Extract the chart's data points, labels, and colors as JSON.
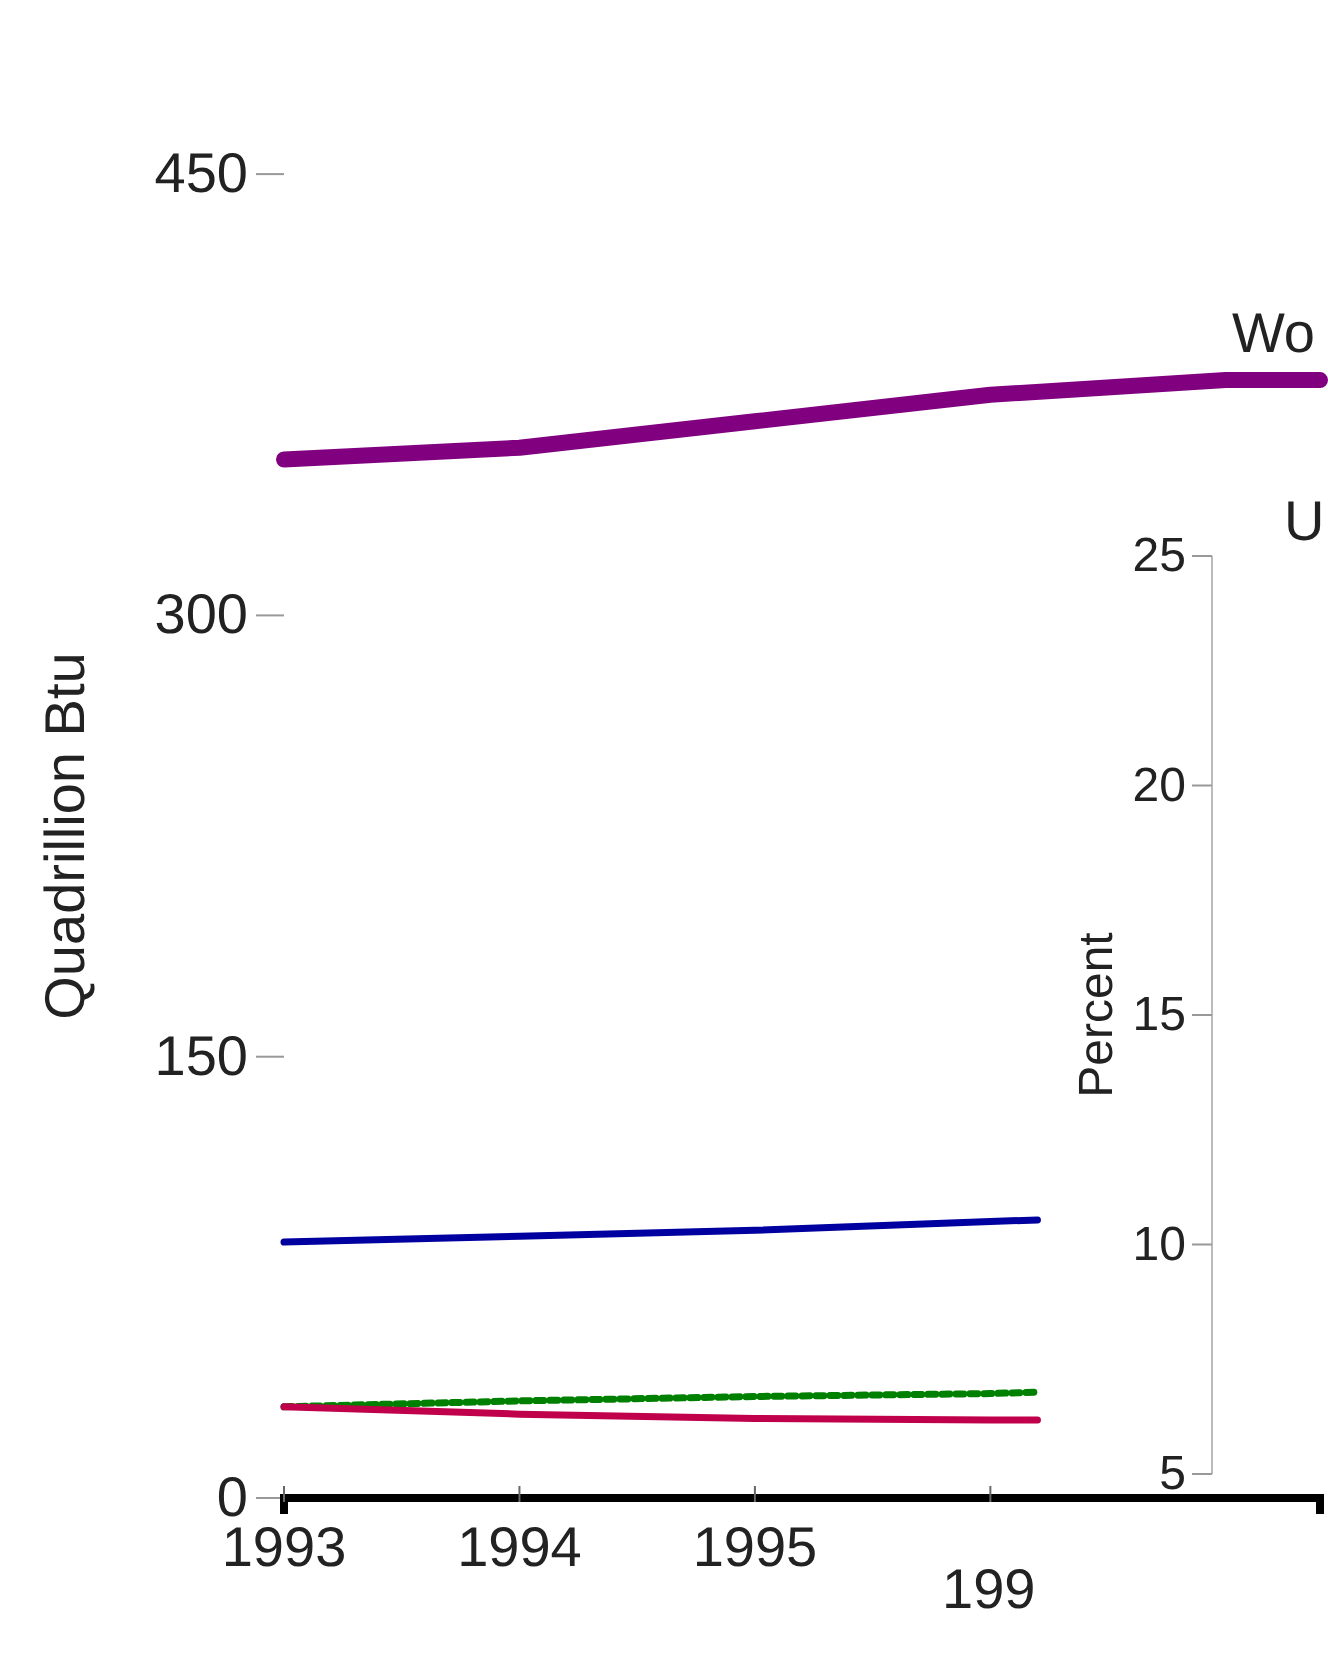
{
  "chart_data": {
    "type": "line",
    "ylabel": "Quadrillion Btu",
    "y2label": "Percent",
    "xlim": [
      1993,
      1997.4
    ],
    "xticks": [
      1993,
      1994,
      1995,
      {
        "value": 1996,
        "label": null
      }
    ],
    "ylim": [
      0,
      450
    ],
    "yticks": [
      0,
      150,
      300,
      450
    ],
    "y2lim": [
      5,
      25
    ],
    "y2ticks": [
      5,
      10,
      15,
      20,
      25
    ],
    "grid": false,
    "series": [
      {
        "color": "#800080",
        "x": [
          1993,
          1994,
          1995,
          1996,
          1997,
          1997.4
        ],
        "values": [
          353,
          357,
          366,
          375,
          380,
          380
        ]
      },
      {
        "color": "#0000a0",
        "x": [
          1993,
          1994,
          1995,
          1996,
          1996.2
        ],
        "values": [
          87,
          89,
          91,
          94,
          94.5
        ]
      },
      {
        "color": "#008000",
        "line_style": "dotted",
        "x": [
          1993,
          1994,
          1995,
          1996,
          1996.2
        ],
        "values": [
          31,
          33,
          34.5,
          35.5,
          36
        ]
      },
      {
        "color": "#c0004a",
        "x": [
          1993,
          1994,
          1995,
          1996,
          1996.2
        ],
        "values": [
          31,
          28.5,
          27,
          26.5,
          26.5
        ]
      }
    ],
    "annotations": [
      "Wo",
      "U",
      "199"
    ]
  }
}
